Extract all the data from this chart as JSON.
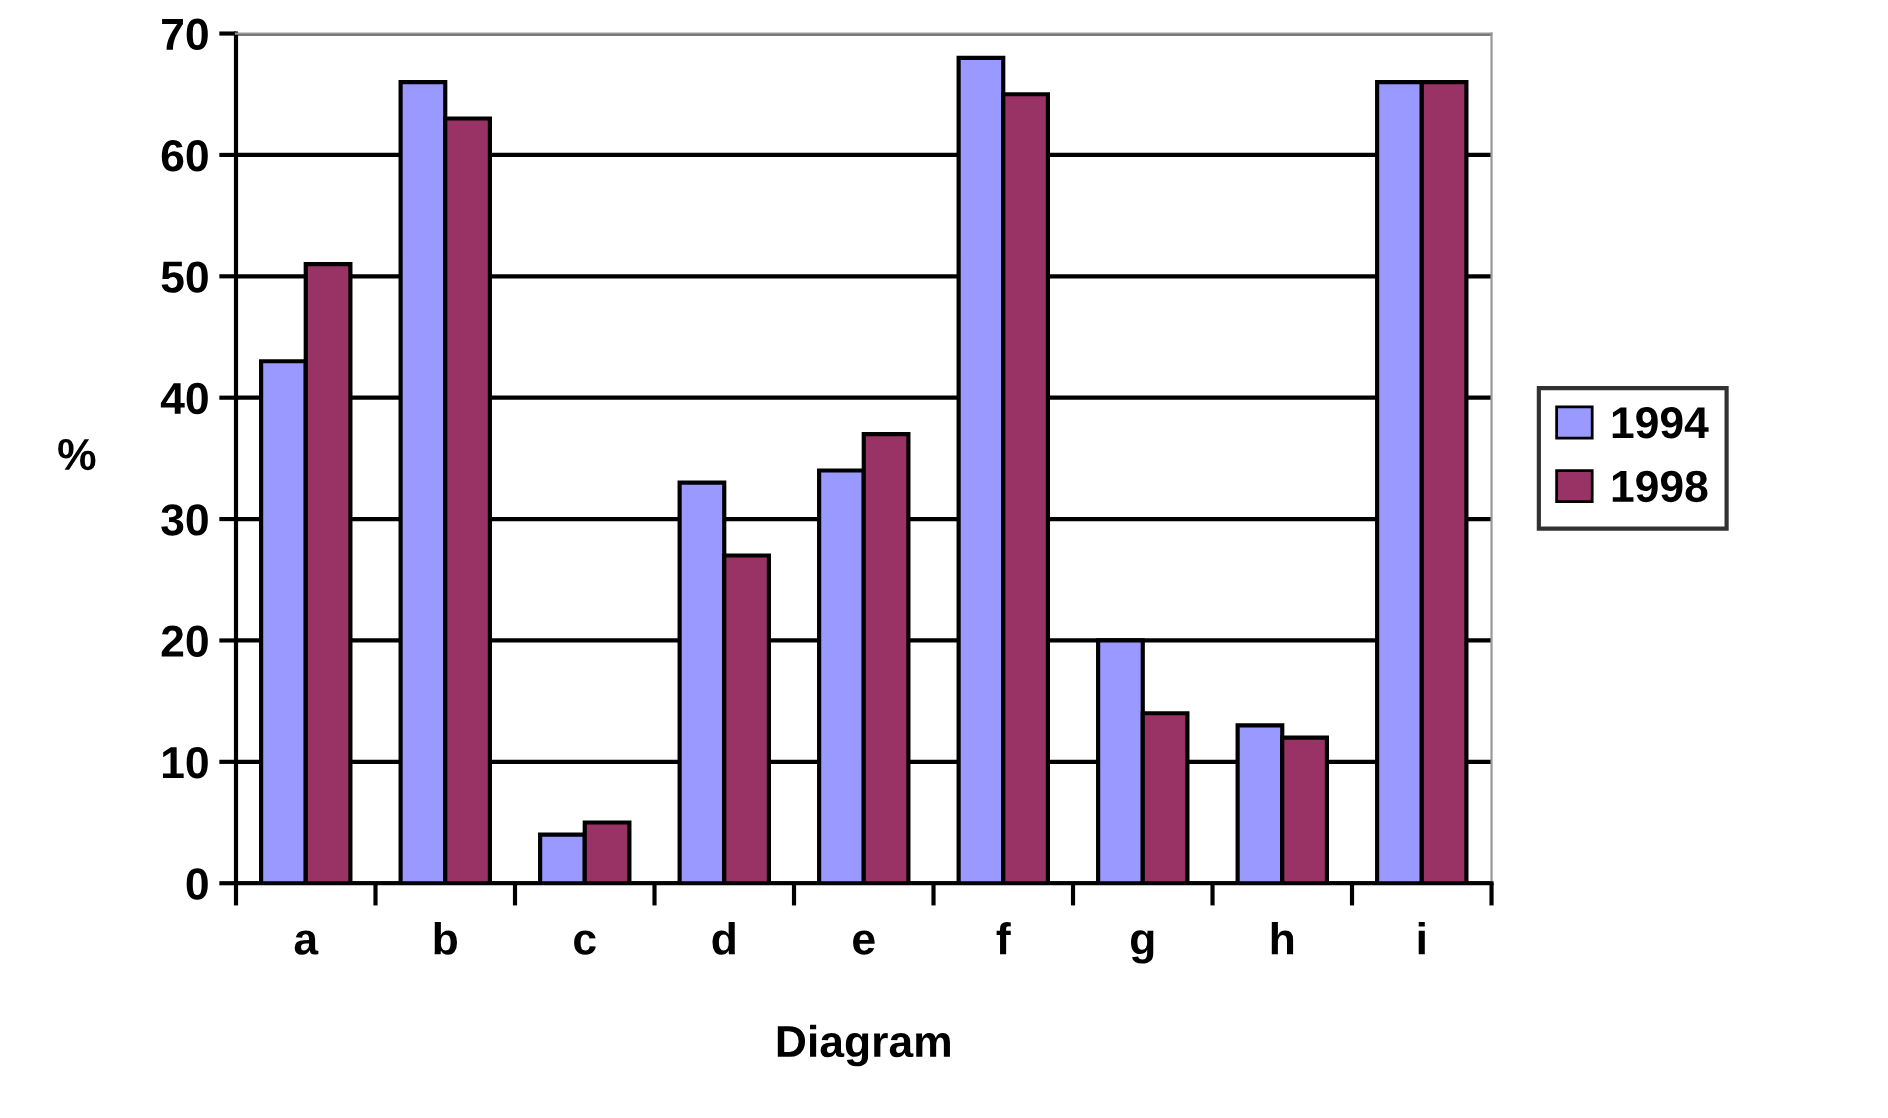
{
  "chart_data": {
    "type": "bar",
    "xlabel": "Diagram",
    "ylabel": "%",
    "categories": [
      "a",
      "b",
      "c",
      "d",
      "e",
      "f",
      "g",
      "h",
      "i"
    ],
    "series": [
      {
        "name": "1994",
        "color": "#9999ff",
        "values": [
          43,
          66,
          4,
          33,
          34,
          68,
          20,
          13,
          66
        ]
      },
      {
        "name": "1998",
        "color": "#993366",
        "values": [
          51,
          63,
          5,
          27,
          37,
          65,
          14,
          12,
          66
        ]
      }
    ],
    "ylim": [
      0,
      70
    ],
    "yticks": [
      0,
      10,
      20,
      30,
      40,
      50,
      60,
      70
    ],
    "grid": "y",
    "legend": "right"
  }
}
